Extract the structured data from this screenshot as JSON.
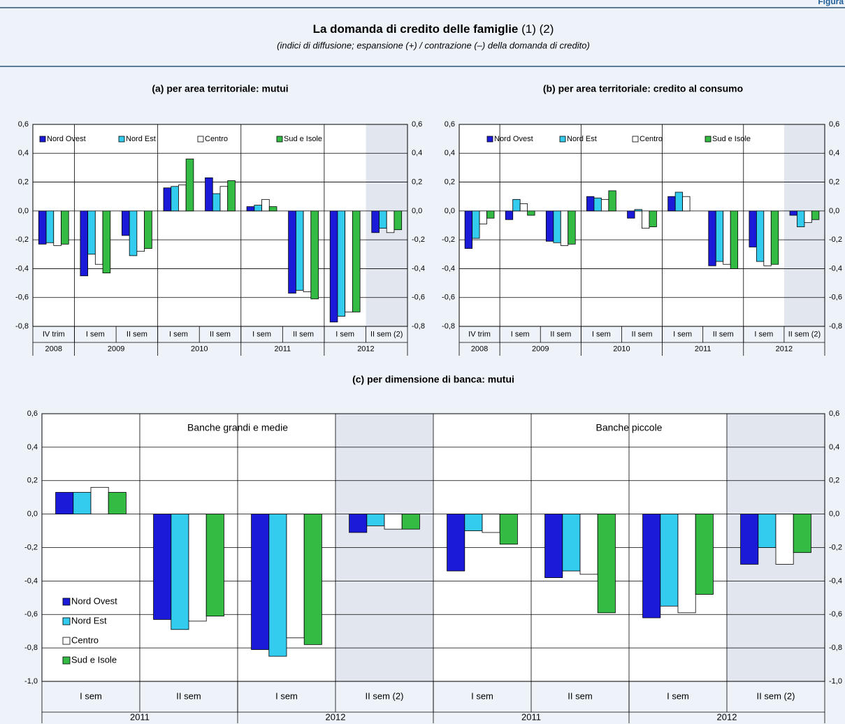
{
  "header": {
    "label": "Figura"
  },
  "title": "La domanda di credito delle famiglie",
  "title_notes": "(1) (2)",
  "subtitle": "(indici di diffusione; espansione (+) / contrazione (–) della domanda di credito)",
  "chart_data": [
    {
      "type": "bar",
      "title": "(a) per area territoriale: mutui",
      "categories": [
        "IV trim",
        "I sem",
        "II sem",
        "I sem",
        "II sem",
        "I sem",
        "II sem",
        "I sem",
        "II sem (2)"
      ],
      "groups": [
        {
          "label": "2008",
          "span": 1
        },
        {
          "label": "2009",
          "span": 2
        },
        {
          "label": "2010",
          "span": 2
        },
        {
          "label": "2011",
          "span": 2
        },
        {
          "label": "2012",
          "span": 2
        }
      ],
      "shaded": [
        false,
        false,
        false,
        false,
        false,
        false,
        false,
        false,
        true
      ],
      "series": [
        {
          "name": "Nord Ovest",
          "color": "#1a1ad8",
          "values": [
            -0.23,
            -0.45,
            -0.17,
            0.16,
            0.23,
            0.03,
            -0.57,
            -0.77,
            -0.15
          ]
        },
        {
          "name": "Nord Est",
          "color": "#33ccee",
          "values": [
            -0.22,
            -0.3,
            -0.31,
            0.17,
            0.12,
            0.04,
            -0.55,
            -0.73,
            -0.12
          ]
        },
        {
          "name": "Centro",
          "color": "#ffffff",
          "values": [
            -0.24,
            -0.37,
            -0.28,
            0.18,
            0.17,
            0.08,
            -0.56,
            -0.7,
            -0.15
          ]
        },
        {
          "name": "Sud e Isole",
          "color": "#33bb44",
          "values": [
            -0.23,
            -0.43,
            -0.26,
            0.36,
            0.21,
            0.03,
            -0.61,
            -0.7,
            -0.13
          ]
        }
      ],
      "ylim": [
        -0.8,
        0.6
      ],
      "yticks": [
        {
          "value": 0.6,
          "label": "0,6"
        },
        {
          "value": 0.4,
          "label": "0,4"
        },
        {
          "value": 0.2,
          "label": "0,2"
        },
        {
          "value": 0,
          "label": "0,0"
        },
        {
          "value": -0.2,
          "label": "-0,2"
        },
        {
          "value": -0.4,
          "label": "-0,4"
        },
        {
          "value": -0.6,
          "label": "-0,6"
        },
        {
          "value": -0.8,
          "label": "-0,8"
        }
      ],
      "grid": true,
      "legend": "top"
    },
    {
      "type": "bar",
      "title": "(b) per area territoriale: credito al consumo",
      "categories": [
        "IV trim",
        "I sem",
        "II sem",
        "I sem",
        "II sem",
        "I sem",
        "II sem",
        "I sem",
        "II sem (2)"
      ],
      "groups": [
        {
          "label": "2008",
          "span": 1
        },
        {
          "label": "2009",
          "span": 2
        },
        {
          "label": "2010",
          "span": 2
        },
        {
          "label": "2011",
          "span": 2
        },
        {
          "label": "2012",
          "span": 2
        }
      ],
      "shaded": [
        false,
        false,
        false,
        false,
        false,
        false,
        false,
        false,
        true
      ],
      "series": [
        {
          "name": "Nord Ovest",
          "color": "#1a1ad8",
          "values": [
            -0.26,
            -0.06,
            -0.21,
            0.1,
            -0.05,
            0.1,
            -0.38,
            -0.25,
            -0.03
          ]
        },
        {
          "name": "Nord Est",
          "color": "#33ccee",
          "values": [
            -0.19,
            0.08,
            -0.22,
            0.09,
            0.01,
            0.13,
            -0.35,
            -0.35,
            -0.11
          ]
        },
        {
          "name": "Centro",
          "color": "#ffffff",
          "values": [
            -0.09,
            0.05,
            -0.24,
            0.08,
            -0.12,
            0.1,
            -0.37,
            -0.38,
            -0.08
          ]
        },
        {
          "name": "Sud e Isole",
          "color": "#33bb44",
          "values": [
            -0.05,
            -0.03,
            -0.23,
            0.14,
            -0.11,
            0,
            -0.4,
            -0.37,
            -0.06
          ]
        }
      ],
      "ylim": [
        -0.8,
        0.6
      ],
      "yticks": [
        {
          "value": 0.6,
          "label": "0,6"
        },
        {
          "value": 0.4,
          "label": "0,4"
        },
        {
          "value": 0.2,
          "label": "0,2"
        },
        {
          "value": 0,
          "label": "0,0"
        },
        {
          "value": -0.2,
          "label": "-0,2"
        },
        {
          "value": -0.4,
          "label": "-0,4"
        },
        {
          "value": -0.6,
          "label": "-0,6"
        },
        {
          "value": -0.8,
          "label": "-0,8"
        }
      ],
      "grid": true,
      "legend": "top"
    },
    {
      "type": "bar",
      "title": "(c) per dimensione di banca: mutui",
      "categories": [
        "I sem",
        "II sem",
        "I sem",
        "II sem (2)",
        "I sem",
        "II sem",
        "I sem",
        "II sem (2)"
      ],
      "groups": [
        {
          "label": "2011",
          "span": 2
        },
        {
          "label": "2012",
          "span": 2
        },
        {
          "label": "2011",
          "span": 2
        },
        {
          "label": "2012",
          "span": 2
        }
      ],
      "panels": [
        "Banche grandi e medie",
        "Banche piccole"
      ],
      "shaded": [
        false,
        false,
        false,
        true,
        false,
        false,
        false,
        true
      ],
      "series": [
        {
          "name": "Nord Ovest",
          "color": "#1a1ad8",
          "values": [
            0.13,
            -0.63,
            -0.81,
            -0.11,
            -0.34,
            -0.38,
            -0.62,
            -0.3
          ]
        },
        {
          "name": "Nord Est",
          "color": "#33ccee",
          "values": [
            0.13,
            -0.69,
            -0.85,
            -0.07,
            -0.1,
            -0.34,
            -0.55,
            -0.2
          ]
        },
        {
          "name": "Centro",
          "color": "#ffffff",
          "values": [
            0.16,
            -0.64,
            -0.74,
            -0.09,
            -0.11,
            -0.36,
            -0.59,
            -0.3
          ]
        },
        {
          "name": "Sud e Isole",
          "color": "#33bb44",
          "values": [
            0.13,
            -0.61,
            -0.78,
            -0.09,
            -0.18,
            -0.59,
            -0.48,
            -0.23
          ]
        }
      ],
      "ylim": [
        -1.0,
        0.6
      ],
      "yticks": [
        {
          "value": 0.6,
          "label": "0,6"
        },
        {
          "value": 0.4,
          "label": "0,4"
        },
        {
          "value": 0.2,
          "label": "0,2"
        },
        {
          "value": 0,
          "label": "0,0"
        },
        {
          "value": -0.2,
          "label": "-0,2"
        },
        {
          "value": -0.4,
          "label": "-0,4"
        },
        {
          "value": -0.6,
          "label": "-0,6"
        },
        {
          "value": -0.8,
          "label": "-0,8"
        },
        {
          "value": -1.0,
          "label": "-1,0"
        }
      ],
      "grid": true,
      "legend": "lower left"
    }
  ]
}
